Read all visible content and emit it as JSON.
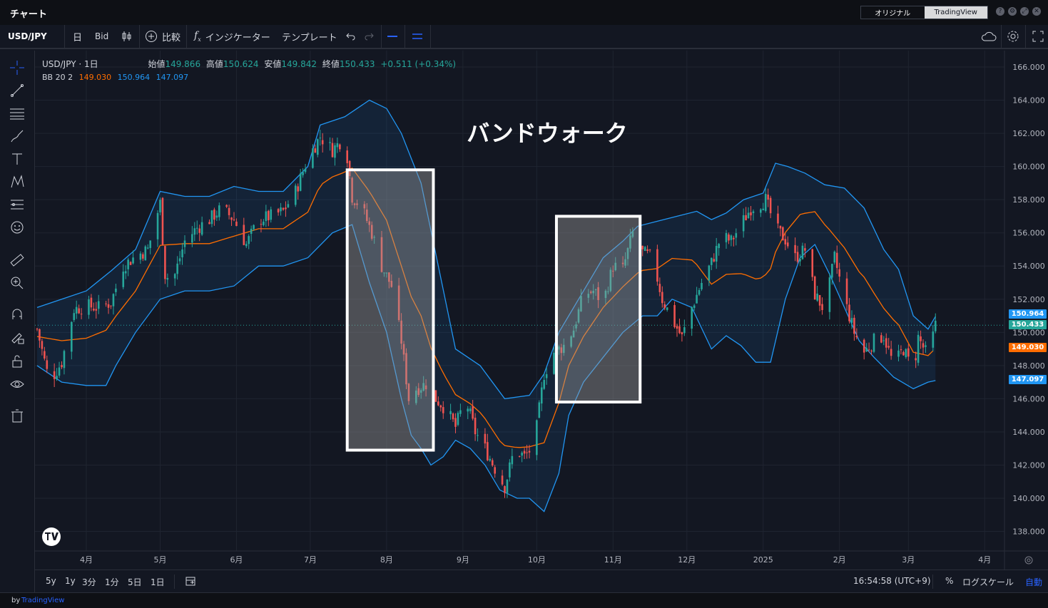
{
  "window": {
    "title": "チャート"
  },
  "view_switch": {
    "option1": "オリジナル",
    "option2": "TradingView"
  },
  "window_buttons": {
    "help": "?",
    "settings": "⚙",
    "restore": "⤢",
    "close": "✕"
  },
  "toolbar": {
    "symbol": "USD/JPY",
    "interval": "日",
    "price_type": "Bid",
    "compare": "比較",
    "indicators": "インジケーター",
    "templates": "テンプレート"
  },
  "legend": {
    "title": "USD/JPY · 1日",
    "open_label": "始値",
    "open": "149.866",
    "high_label": "高値",
    "high": "150.624",
    "low_label": "安値",
    "low": "149.842",
    "close_label": "終値",
    "close": "150.433",
    "change": "+0.511 (+0.34%)",
    "bb_label": "BB 20 2",
    "bb_middle": "149.030",
    "bb_upper": "150.964",
    "bb_lower": "147.097"
  },
  "annotation": {
    "text": "バンドウォーク"
  },
  "bottom": {
    "ranges": [
      "5y",
      "1y",
      "3分",
      "1分",
      "5日",
      "1日"
    ],
    "time": "16:54:58 (UTC+9)",
    "percent": "%",
    "log": "ログスケール",
    "auto": "自動"
  },
  "footer": {
    "by": "by",
    "brand": "TradingView"
  },
  "colors": {
    "up": "#26a69a",
    "down": "#ef5350",
    "band": "#2196f3",
    "middle": "#ff6d00",
    "background": "#131722"
  },
  "chart_data": {
    "type": "candlestick",
    "y_ticks": [
      166,
      164,
      162,
      160,
      158,
      156,
      154,
      152,
      150,
      148,
      146,
      144,
      142,
      140,
      138
    ],
    "x_labels": [
      {
        "label": "4月",
        "day": 20
      },
      {
        "label": "5月",
        "day": 50
      },
      {
        "label": "6月",
        "day": 81
      },
      {
        "label": "7月",
        "day": 111
      },
      {
        "label": "8月",
        "day": 142
      },
      {
        "label": "9月",
        "day": 173
      },
      {
        "label": "10月",
        "day": 203
      },
      {
        "label": "11月",
        "day": 234
      },
      {
        "label": "12月",
        "day": 264
      },
      {
        "label": "2025",
        "day": 295
      },
      {
        "label": "2月",
        "day": 326
      },
      {
        "label": "3月",
        "day": 354
      },
      {
        "label": "4月",
        "day": 385
      }
    ],
    "closes": [
      [
        0,
        150.2
      ],
      [
        5,
        147.0
      ],
      [
        10,
        148.2
      ],
      [
        15,
        151.4
      ],
      [
        20,
        151.6
      ],
      [
        25,
        151.5
      ],
      [
        30,
        151.8
      ],
      [
        35,
        154.0
      ],
      [
        40,
        154.6
      ],
      [
        45,
        155.0
      ],
      [
        50,
        157.8
      ],
      [
        52,
        153.5
      ],
      [
        55,
        153.0
      ],
      [
        60,
        155.5
      ],
      [
        65,
        156.3
      ],
      [
        70,
        156.8
      ],
      [
        75,
        157.5
      ],
      [
        80,
        156.8
      ],
      [
        85,
        155.3
      ],
      [
        90,
        156.8
      ],
      [
        95,
        157.0
      ],
      [
        100,
        157.3
      ],
      [
        105,
        158.5
      ],
      [
        110,
        160.5
      ],
      [
        115,
        161.8
      ],
      [
        120,
        161.0
      ],
      [
        125,
        161.8
      ],
      [
        128,
        158.2
      ],
      [
        132,
        157.5
      ],
      [
        136,
        156.0
      ],
      [
        140,
        154.0
      ],
      [
        144,
        152.8
      ],
      [
        148,
        149.5
      ],
      [
        151,
        146.0
      ],
      [
        154,
        146.6
      ],
      [
        158,
        146.9
      ],
      [
        162,
        146.0
      ],
      [
        166,
        145.4
      ],
      [
        170,
        144.3
      ],
      [
        174,
        146.0
      ],
      [
        178,
        144.0
      ],
      [
        182,
        143.0
      ],
      [
        186,
        141.8
      ],
      [
        190,
        140.7
      ],
      [
        194,
        143.0
      ],
      [
        198,
        142.5
      ],
      [
        202,
        143.2
      ],
      [
        206,
        147.5
      ],
      [
        210,
        148.8
      ],
      [
        214,
        149.2
      ],
      [
        218,
        150.2
      ],
      [
        222,
        152.3
      ],
      [
        226,
        152.5
      ],
      [
        230,
        151.8
      ],
      [
        234,
        154.0
      ],
      [
        238,
        153.8
      ],
      [
        242,
        156.0
      ],
      [
        246,
        154.8
      ],
      [
        250,
        154.5
      ],
      [
        254,
        152.0
      ],
      [
        258,
        150.8
      ],
      [
        262,
        149.7
      ],
      [
        266,
        151.5
      ],
      [
        270,
        153.0
      ],
      [
        274,
        154.2
      ],
      [
        278,
        155.8
      ],
      [
        282,
        155.5
      ],
      [
        286,
        156.5
      ],
      [
        290,
        157.5
      ],
      [
        294,
        157.8
      ],
      [
        296,
        158.0
      ],
      [
        300,
        156.3
      ],
      [
        304,
        155.6
      ],
      [
        308,
        154.5
      ],
      [
        312,
        155.0
      ],
      [
        316,
        152.3
      ],
      [
        320,
        151.3
      ],
      [
        324,
        154.5
      ],
      [
        328,
        152.0
      ],
      [
        332,
        150.0
      ],
      [
        336,
        148.8
      ],
      [
        340,
        149.5
      ],
      [
        344,
        149.8
      ],
      [
        348,
        148.0
      ],
      [
        352,
        149.0
      ],
      [
        356,
        147.6
      ],
      [
        358,
        149.7
      ],
      [
        362,
        148.5
      ],
      [
        365,
        150.433
      ]
    ],
    "bollinger": {
      "period": 20,
      "stddev": 2,
      "upper": [
        [
          0,
          151.5
        ],
        [
          10,
          152.0
        ],
        [
          20,
          152.5
        ],
        [
          30,
          153.7
        ],
        [
          40,
          155.0
        ],
        [
          50,
          158.5
        ],
        [
          60,
          158.2
        ],
        [
          70,
          158.2
        ],
        [
          80,
          158.8
        ],
        [
          90,
          158.5
        ],
        [
          100,
          158.5
        ],
        [
          110,
          160.0
        ],
        [
          115,
          162.5
        ],
        [
          125,
          163.0
        ],
        [
          135,
          164.0
        ],
        [
          142,
          163.5
        ],
        [
          148,
          162.0
        ],
        [
          156,
          159.0
        ],
        [
          163,
          154.0
        ],
        [
          170,
          149.0
        ],
        [
          180,
          148.0
        ],
        [
          190,
          146.0
        ],
        [
          200,
          146.2
        ],
        [
          206,
          147.5
        ],
        [
          212,
          150.0
        ],
        [
          220,
          152.0
        ],
        [
          230,
          154.5
        ],
        [
          238,
          155.5
        ],
        [
          244,
          156.4
        ],
        [
          252,
          156.7
        ],
        [
          260,
          157.0
        ],
        [
          268,
          157.3
        ],
        [
          274,
          156.8
        ],
        [
          280,
          157.2
        ],
        [
          287,
          158.0
        ],
        [
          295,
          158.4
        ],
        [
          300,
          160.2
        ],
        [
          305,
          160.0
        ],
        [
          312,
          159.6
        ],
        [
          320,
          158.9
        ],
        [
          328,
          158.7
        ],
        [
          336,
          157.5
        ],
        [
          344,
          155.0
        ],
        [
          350,
          153.8
        ],
        [
          356,
          151.0
        ],
        [
          362,
          150.2
        ],
        [
          365,
          150.964
        ]
      ],
      "lower": [
        [
          0,
          148.0
        ],
        [
          10,
          147.0
        ],
        [
          20,
          146.8
        ],
        [
          28,
          146.8
        ],
        [
          32,
          148.0
        ],
        [
          40,
          150.0
        ],
        [
          50,
          152.0
        ],
        [
          60,
          152.5
        ],
        [
          70,
          152.5
        ],
        [
          80,
          152.8
        ],
        [
          90,
          154.0
        ],
        [
          100,
          154.0
        ],
        [
          110,
          154.5
        ],
        [
          120,
          156.0
        ],
        [
          128,
          156.5
        ],
        [
          135,
          153.0
        ],
        [
          142,
          150.0
        ],
        [
          148,
          146.0
        ],
        [
          152,
          143.8
        ],
        [
          156,
          143.0
        ],
        [
          160,
          142.0
        ],
        [
          165,
          142.5
        ],
        [
          170,
          143.5
        ],
        [
          176,
          143.0
        ],
        [
          182,
          142.0
        ],
        [
          188,
          140.5
        ],
        [
          195,
          140.0
        ],
        [
          200,
          140.0
        ],
        [
          206,
          139.2
        ],
        [
          212,
          141.5
        ],
        [
          216,
          145.0
        ],
        [
          222,
          147.0
        ],
        [
          230,
          148.5
        ],
        [
          238,
          150.0
        ],
        [
          246,
          151.0
        ],
        [
          252,
          151.0
        ],
        [
          258,
          152.0
        ],
        [
          266,
          151.5
        ],
        [
          274,
          149.0
        ],
        [
          280,
          149.8
        ],
        [
          286,
          149.2
        ],
        [
          292,
          148.2
        ],
        [
          298,
          148.2
        ],
        [
          304,
          152.0
        ],
        [
          310,
          154.5
        ],
        [
          316,
          155.3
        ],
        [
          322,
          153.5
        ],
        [
          328,
          151.5
        ],
        [
          334,
          149.5
        ],
        [
          340,
          148.5
        ],
        [
          348,
          147.3
        ],
        [
          356,
          146.6
        ],
        [
          362,
          147.0
        ],
        [
          365,
          147.097
        ]
      ]
    },
    "walk_boxes": [
      {
        "start_day": 126,
        "end_day": 161,
        "high": 159.8,
        "low": 142.9
      },
      {
        "start_day": 211,
        "end_day": 245,
        "high": 157.0,
        "low": 145.8
      }
    ],
    "last_price": 150.433,
    "bb_upper_last": 150.964,
    "bb_middle_last": 149.03,
    "bb_lower_last": 147.097
  }
}
